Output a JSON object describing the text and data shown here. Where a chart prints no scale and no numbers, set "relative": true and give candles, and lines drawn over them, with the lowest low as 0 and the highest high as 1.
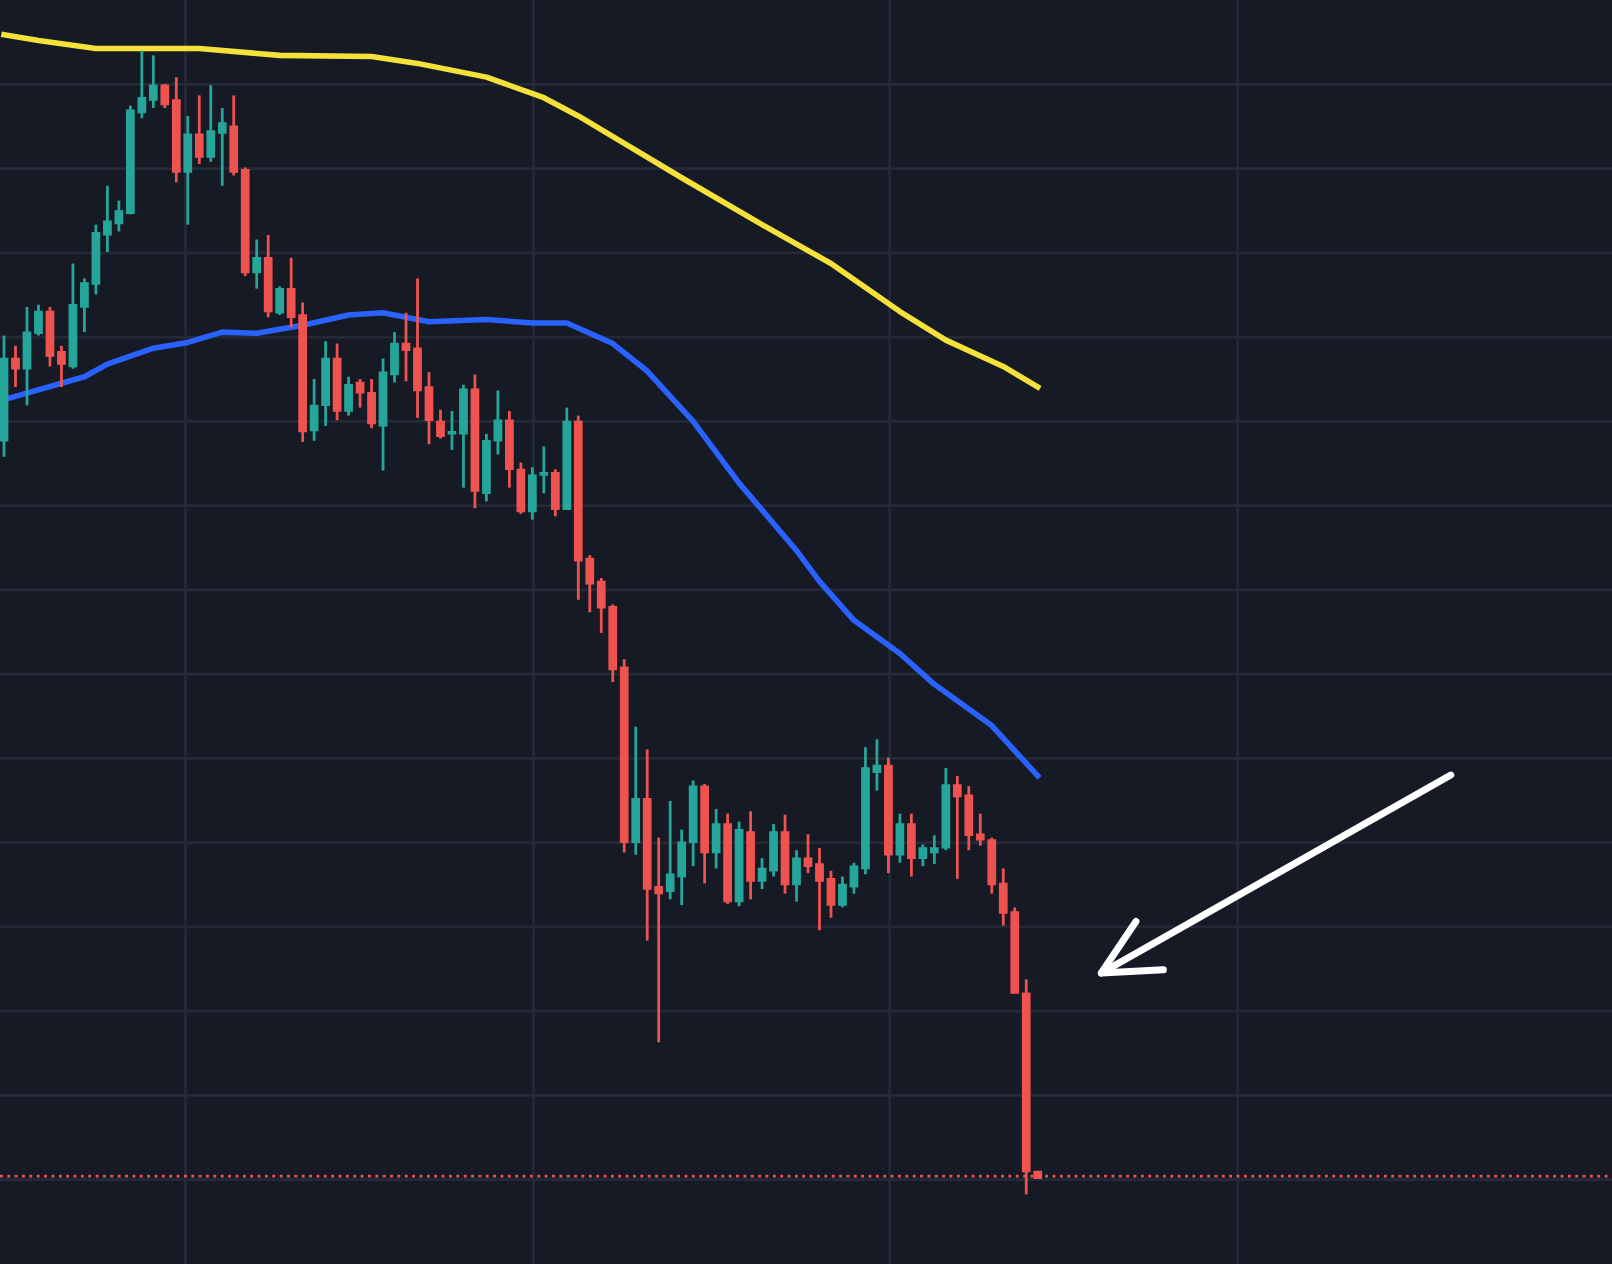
{
  "chart_data": {
    "type": "candlestick",
    "relative": true,
    "grid": true,
    "legend": false,
    "categories": [
      null,
      null,
      null,
      null,
      null,
      null,
      null,
      null,
      null,
      null,
      null,
      null,
      null,
      null,
      null,
      null,
      null,
      null,
      null,
      null,
      null,
      null,
      null,
      null,
      null,
      null,
      null,
      null,
      null,
      null,
      null,
      null,
      null,
      null,
      null,
      null,
      null,
      null,
      null,
      null,
      null,
      null,
      null,
      null,
      null,
      null,
      null,
      null,
      null,
      null,
      null,
      null,
      null,
      null,
      null,
      null,
      null,
      null,
      null,
      null,
      null,
      null,
      null,
      null,
      null,
      null,
      null,
      null,
      null,
      null,
      null,
      null,
      null,
      null,
      null,
      null,
      null,
      null,
      null,
      null,
      null,
      null,
      null,
      null,
      null,
      null,
      null,
      null,
      null,
      null,
      null
    ],
    "ohlc": [
      [
        0.659,
        0.751,
        0.645,
        0.731
      ],
      [
        0.731,
        0.742,
        0.706,
        0.722
      ],
      [
        0.722,
        0.776,
        0.69,
        0.754
      ],
      [
        0.753,
        0.778,
        0.751,
        0.772
      ],
      [
        0.772,
        0.776,
        0.724,
        0.733
      ],
      [
        0.737,
        0.742,
        0.706,
        0.726
      ],
      [
        0.724,
        0.814,
        0.722,
        0.778
      ],
      [
        0.776,
        0.801,
        0.754,
        0.797
      ],
      [
        0.796,
        0.848,
        0.787,
        0.841
      ],
      [
        0.839,
        0.882,
        0.824,
        0.851
      ],
      [
        0.849,
        0.869,
        0.842,
        0.86
      ],
      [
        0.858,
        0.952,
        0.857,
        0.948
      ],
      [
        0.946,
        1,
        0.941,
        0.959
      ],
      [
        0.957,
        0.996,
        0.95,
        0.97
      ],
      [
        0.97,
        0.971,
        0.95,
        0.953
      ],
      [
        0.957,
        0.977,
        0.885,
        0.894
      ],
      [
        0.894,
        0.943,
        0.848,
        0.927
      ],
      [
        0.927,
        0.961,
        0.901,
        0.907
      ],
      [
        0.907,
        0.97,
        0.903,
        0.93
      ],
      [
        0.928,
        0.95,
        0.882,
        0.937
      ],
      [
        0.934,
        0.961,
        0.891,
        0.894
      ],
      [
        0.896,
        0.898,
        0.803,
        0.806
      ],
      [
        0.806,
        0.835,
        0.792,
        0.819
      ],
      [
        0.819,
        0.839,
        0.767,
        0.772
      ],
      [
        0.771,
        0.794,
        0.769,
        0.792
      ],
      [
        0.792,
        0.819,
        0.758,
        0.767
      ],
      [
        0.769,
        0.78,
        0.658,
        0.667
      ],
      [
        0.668,
        0.713,
        0.659,
        0.69
      ],
      [
        0.69,
        0.746,
        0.672,
        0.731
      ],
      [
        0.731,
        0.744,
        0.677,
        0.685
      ],
      [
        0.685,
        0.715,
        0.681,
        0.708
      ],
      [
        0.71,
        0.713,
        0.688,
        0.701
      ],
      [
        0.701,
        0.713,
        0.67,
        0.674
      ],
      [
        0.672,
        0.731,
        0.633,
        0.719
      ],
      [
        0.717,
        0.754,
        0.71,
        0.744
      ],
      [
        0.744,
        0.771,
        0.711,
        0.738
      ],
      [
        0.74,
        0.801,
        0.679,
        0.703
      ],
      [
        0.706,
        0.719,
        0.656,
        0.677
      ],
      [
        0.676,
        0.686,
        0.661,
        0.663
      ],
      [
        0.665,
        0.685,
        0.651,
        0.667
      ],
      [
        0.665,
        0.708,
        0.618,
        0.704
      ],
      [
        0.704,
        0.717,
        0.6,
        0.615
      ],
      [
        0.613,
        0.665,
        0.606,
        0.659
      ],
      [
        0.659,
        0.703,
        0.647,
        0.677
      ],
      [
        0.677,
        0.685,
        0.618,
        0.634
      ],
      [
        0.634,
        0.64,
        0.595,
        0.597
      ],
      [
        0.597,
        0.636,
        0.59,
        0.629
      ],
      [
        0.629,
        0.654,
        0.613,
        0.631
      ],
      [
        0.631,
        0.634,
        0.593,
        0.599
      ],
      [
        0.599,
        0.688,
        0.599,
        0.676
      ],
      [
        0.676,
        0.681,
        0.52,
        0.554
      ],
      [
        0.556,
        0.559,
        0.509,
        0.534
      ],
      [
        0.536,
        0.539,
        0.491,
        0.513
      ],
      [
        0.514,
        0.516,
        0.448,
        0.459
      ],
      [
        0.461,
        0.468,
        0.299,
        0.308
      ],
      [
        0.308,
        0.409,
        0.297,
        0.346
      ],
      [
        0.346,
        0.389,
        0.222,
        0.267
      ],
      [
        0.269,
        0.312,
        0.133,
        0.263
      ],
      [
        0.265,
        0.344,
        0.258,
        0.28
      ],
      [
        0.278,
        0.319,
        0.253,
        0.308
      ],
      [
        0.308,
        0.362,
        0.287,
        0.357
      ],
      [
        0.357,
        0.359,
        0.272,
        0.299
      ],
      [
        0.299,
        0.337,
        0.285,
        0.324
      ],
      [
        0.324,
        0.333,
        0.254,
        0.256
      ],
      [
        0.256,
        0.326,
        0.252,
        0.319
      ],
      [
        0.317,
        0.335,
        0.258,
        0.274
      ],
      [
        0.274,
        0.294,
        0.267,
        0.285
      ],
      [
        0.283,
        0.324,
        0.278,
        0.317
      ],
      [
        0.317,
        0.332,
        0.263,
        0.271
      ],
      [
        0.271,
        0.301,
        0.256,
        0.294
      ],
      [
        0.294,
        0.315,
        0.281,
        0.287
      ],
      [
        0.289,
        0.303,
        0.231,
        0.274
      ],
      [
        0.276,
        0.283,
        0.242,
        0.253
      ],
      [
        0.253,
        0.278,
        0.251,
        0.271
      ],
      [
        0.269,
        0.29,
        0.263,
        0.287
      ],
      [
        0.285,
        0.391,
        0.28,
        0.373
      ],
      [
        0.369,
        0.398,
        0.353,
        0.375
      ],
      [
        0.375,
        0.382,
        0.281,
        0.297
      ],
      [
        0.297,
        0.333,
        0.29,
        0.324
      ],
      [
        0.324,
        0.333,
        0.278,
        0.294
      ],
      [
        0.294,
        0.306,
        0.287,
        0.303
      ],
      [
        0.299,
        0.314,
        0.289,
        0.303
      ],
      [
        0.303,
        0.373,
        0.301,
        0.358
      ],
      [
        0.358,
        0.366,
        0.276,
        0.348
      ],
      [
        0.349,
        0.357,
        0.301,
        0.314
      ],
      [
        0.315,
        0.333,
        0.305,
        0.31
      ],
      [
        0.31,
        0.312,
        0.263,
        0.271
      ],
      [
        0.272,
        0.285,
        0.235,
        0.246
      ],
      [
        0.247,
        0.251,
        0.176,
        0.176
      ],
      [
        0.176,
        0.188,
        0,
        0.02
      ],
      [
        0.02,
        0.02,
        0.014,
        0.014
      ]
    ],
    "series": [
      {
        "type": "line",
        "color": "#f5e13a",
        "values": [
          1.014,
          null,
          null,
          1.009,
          null,
          null,
          null,
          null,
          1.002,
          null,
          null,
          null,
          1.002,
          null,
          null,
          null,
          null,
          1.002,
          null,
          null,
          null,
          null,
          null,
          null,
          0.996,
          null,
          null,
          null,
          null,
          null,
          null,
          null,
          0.995,
          null,
          null,
          null,
          0.989,
          null,
          null,
          null,
          null,
          null,
          0.977,
          null,
          null,
          null,
          null,
          0.959,
          null,
          null,
          0.943,
          null,
          null,
          null,
          0.919,
          null,
          null,
          null,
          null,
          0.889,
          null,
          null,
          null,
          null,
          null,
          null,
          0.848,
          null,
          null,
          null,
          null,
          null,
          0.814,
          null,
          null,
          null,
          null,
          null,
          0.772,
          null,
          null,
          null,
          0.747,
          null,
          null,
          null,
          null,
          0.724,
          null,
          null,
          0.706
        ]
      },
      {
        "type": "line",
        "color": "#2962ff",
        "values": [
          0.695,
          null,
          null,
          null,
          null,
          null,
          null,
          0.715,
          null,
          0.726,
          null,
          null,
          null,
          0.74,
          null,
          null,
          0.745,
          null,
          null,
          0.754,
          null,
          null,
          0.753,
          null,
          null,
          null,
          0.76,
          null,
          null,
          null,
          0.769,
          null,
          null,
          0.771,
          null,
          null,
          null,
          0.763,
          null,
          null,
          null,
          null,
          0.765,
          null,
          null,
          null,
          0.762,
          null,
          null,
          0.762,
          null,
          null,
          null,
          0.744,
          null,
          null,
          0.72,
          null,
          null,
          null,
          0.676,
          null,
          null,
          null,
          0.622,
          null,
          null,
          null,
          null,
          0.563,
          null,
          0.536,
          null,
          null,
          0.502,
          null,
          null,
          null,
          0.473,
          null,
          null,
          0.446,
          null,
          null,
          null,
          null,
          0.41,
          null,
          null,
          null,
          0.366
        ]
      }
    ],
    "ref_lines": [
      {
        "axis": "y",
        "value": 0.016,
        "label": null,
        "color": "#ef5350",
        "line_style": "dotted"
      }
    ]
  }
}
